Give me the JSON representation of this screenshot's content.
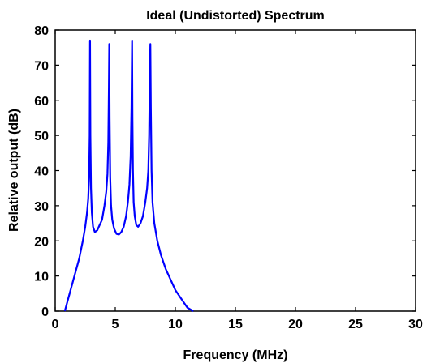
{
  "chart_data": {
    "type": "line",
    "title": "Ideal (Undistorted) Spectrum",
    "xlabel": "Frequency (MHz)",
    "ylabel": "Relative output (dB)",
    "xlim": [
      0,
      30
    ],
    "ylim": [
      0,
      80
    ],
    "xticks": [
      "0",
      "5",
      "10",
      "15",
      "20",
      "25",
      "30"
    ],
    "yticks": [
      "0",
      "10",
      "20",
      "30",
      "40",
      "50",
      "60",
      "70",
      "80"
    ],
    "grid": false,
    "series": [
      {
        "color": "#0000ff",
        "x": [
          0.8,
          1.2,
          1.6,
          2.0,
          2.3,
          2.5,
          2.65,
          2.75,
          2.82,
          2.87,
          2.9,
          2.93,
          2.98,
          3.05,
          3.15,
          3.3,
          3.5,
          3.7,
          3.9,
          4.1,
          4.25,
          4.35,
          4.42,
          4.47,
          4.5,
          4.53,
          4.58,
          4.65,
          4.75,
          4.9,
          5.1,
          5.3,
          5.5,
          5.7,
          5.9,
          6.05,
          6.18,
          6.28,
          6.35,
          6.4,
          6.43,
          6.47,
          6.53,
          6.62,
          6.75,
          6.9,
          7.1,
          7.3,
          7.5,
          7.65,
          7.75,
          7.82,
          7.88,
          7.92,
          7.96,
          8.02,
          8.1,
          8.25,
          8.5,
          8.8,
          9.2,
          9.6,
          10.0,
          10.5,
          11.0,
          11.5
        ],
        "y": [
          0,
          5,
          10,
          15,
          20,
          24,
          28,
          32,
          38,
          50,
          77,
          50,
          35,
          28,
          24,
          22.5,
          23,
          24.5,
          26,
          30,
          34,
          39,
          48,
          64,
          76,
          55,
          38,
          30,
          26,
          23.5,
          22,
          21.8,
          22.5,
          24,
          27,
          31,
          36,
          44,
          58,
          77,
          55,
          40,
          31,
          27,
          24.5,
          24,
          25,
          27,
          31,
          35,
          40,
          50,
          68,
          76,
          58,
          40,
          31,
          25,
          20,
          16,
          12,
          9,
          6,
          3.5,
          1,
          0
        ]
      }
    ]
  }
}
